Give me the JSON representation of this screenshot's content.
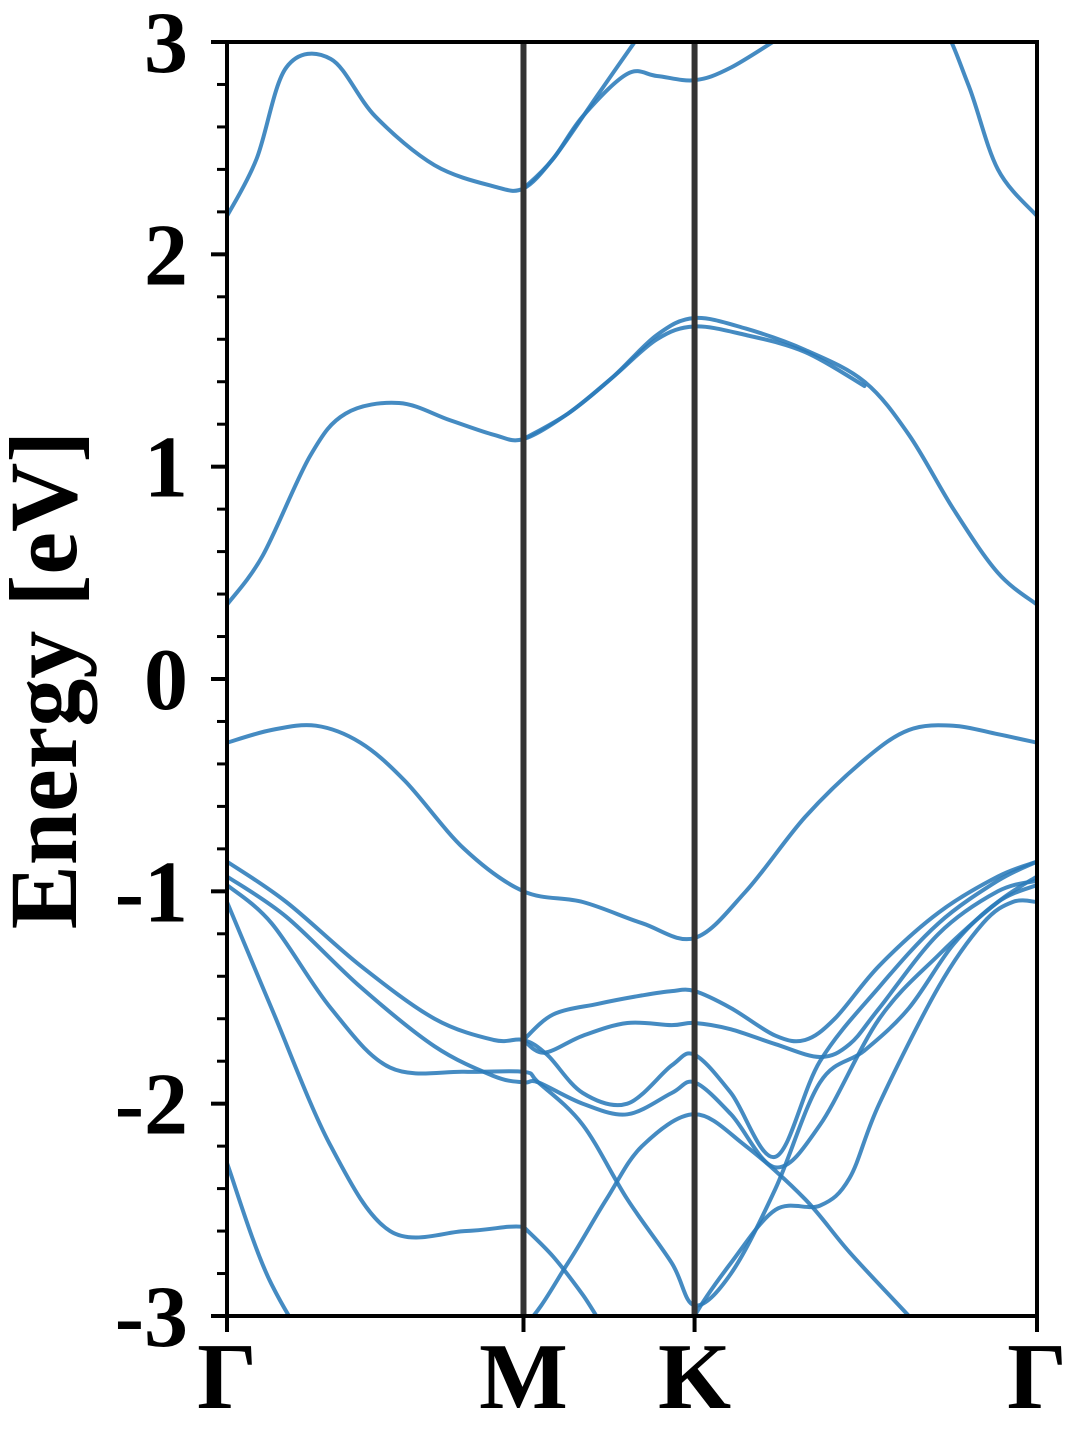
{
  "chart_data": {
    "type": "line",
    "title": "",
    "ylabel": "Energy [eV]",
    "xlabel": "",
    "ylim": [
      -3,
      3
    ],
    "yticks": [
      -3,
      -2,
      -1,
      0,
      1,
      2,
      3
    ],
    "ytick_labels": [
      "-3",
      "-2",
      "-1",
      "0",
      "1",
      "2",
      "3"
    ],
    "kpath": [
      {
        "label": "Γ",
        "x": 0.0
      },
      {
        "label": "M",
        "x": 1.0
      },
      {
        "label": "K",
        "x": 1.577
      },
      {
        "label": "Γ",
        "x": 2.732
      }
    ],
    "xlim": [
      0,
      2.732
    ],
    "grid": false,
    "colors": {
      "band": "#2b7bba",
      "kline": "#333333",
      "axis": "#000000"
    },
    "series": [
      {
        "x": [
          0,
          0.15,
          0.35,
          0.55,
          0.8,
          1.0,
          1.15,
          1.28,
          1.4,
          1.577,
          1.75,
          1.95,
          2.1,
          2.3,
          2.5,
          2.732
        ],
        "values": [
          -2.28,
          -2.85,
          -3.25,
          -3.3,
          -3.2,
          -3.05,
          -2.75,
          -2.45,
          -2.2,
          -2.05,
          -2.2,
          -2.45,
          -2.7,
          -3.0,
          -3.3,
          -3.4
        ]
      },
      {
        "x": [
          0,
          0.15,
          0.35,
          0.55,
          0.8,
          0.95,
          1.0
        ],
        "values": [
          -1.05,
          -1.55,
          -2.2,
          -2.6,
          -2.6,
          -2.58,
          -2.58
        ]
      },
      {
        "x": [
          1.0,
          1.1,
          1.2,
          1.35,
          1.5,
          1.577,
          1.7,
          1.85,
          2.0,
          2.1,
          2.2,
          2.4,
          2.55,
          2.65,
          2.732
        ],
        "values": [
          -2.58,
          -2.72,
          -2.9,
          -3.2,
          -3.25,
          -3.0,
          -2.75,
          -2.5,
          -2.48,
          -2.35,
          -2.0,
          -1.45,
          -1.15,
          -1.05,
          -1.05
        ]
      },
      {
        "x": [
          0,
          0.15,
          0.35,
          0.55,
          0.8,
          1.0,
          1.05,
          1.2,
          1.35,
          1.5,
          1.577,
          1.7,
          1.85,
          2.0,
          2.15,
          2.3,
          2.45,
          2.6,
          2.732
        ],
        "values": [
          -0.97,
          -1.15,
          -1.55,
          -1.83,
          -1.85,
          -1.85,
          -1.9,
          -2.1,
          -2.45,
          -2.75,
          -2.95,
          -2.8,
          -2.4,
          -1.9,
          -1.75,
          -1.55,
          -1.25,
          -1.05,
          -0.97
        ]
      },
      {
        "x": [
          0,
          0.2,
          0.45,
          0.7,
          0.9,
          1.0,
          1.05,
          1.2,
          1.35,
          1.5,
          1.577,
          1.7,
          1.85,
          2.0,
          2.2,
          2.4,
          2.6,
          2.732
        ],
        "values": [
          -0.93,
          -1.12,
          -1.45,
          -1.73,
          -1.87,
          -1.9,
          -1.9,
          -2.0,
          -2.05,
          -1.95,
          -1.9,
          -2.05,
          -2.3,
          -2.1,
          -1.6,
          -1.3,
          -1.05,
          -0.93
        ]
      },
      {
        "x": [
          0,
          0.2,
          0.45,
          0.7,
          0.9,
          1.0,
          1.08,
          1.2,
          1.35,
          1.5,
          1.577,
          1.7,
          1.85,
          2.0,
          2.2,
          2.4,
          2.6,
          2.732
        ],
        "values": [
          -0.86,
          -1.05,
          -1.35,
          -1.6,
          -1.7,
          -1.7,
          -1.77,
          -1.95,
          -2.0,
          -1.82,
          -1.77,
          -1.95,
          -2.25,
          -1.8,
          -1.45,
          -1.15,
          -0.95,
          -0.86
        ]
      },
      {
        "x": [
          1.0,
          1.1,
          1.25,
          1.4,
          1.5,
          1.577,
          1.7,
          1.85,
          1.95,
          2.05,
          2.2,
          2.4,
          2.6,
          2.732
        ],
        "values": [
          -1.7,
          -1.58,
          -1.53,
          -1.49,
          -1.47,
          -1.47,
          -1.55,
          -1.68,
          -1.7,
          -1.6,
          -1.35,
          -1.1,
          -0.93,
          -0.86
        ]
      },
      {
        "x": [
          1.0,
          1.07,
          1.2,
          1.35,
          1.5,
          1.577,
          1.7,
          1.85,
          2.0,
          2.1,
          2.2,
          2.4,
          2.6,
          2.732
        ],
        "values": [
          -1.7,
          -1.76,
          -1.68,
          -1.62,
          -1.63,
          -1.62,
          -1.65,
          -1.72,
          -1.78,
          -1.72,
          -1.55,
          -1.2,
          -1.0,
          -0.95
        ]
      },
      {
        "x": [
          0,
          0.15,
          0.3,
          0.45,
          0.6,
          0.8,
          1.0,
          1.2,
          1.4,
          1.577,
          1.75,
          1.95,
          2.15,
          2.3,
          2.45,
          2.6,
          2.732
        ],
        "values": [
          -0.3,
          -0.24,
          -0.22,
          -0.3,
          -0.48,
          -0.8,
          -1.0,
          -1.05,
          -1.15,
          -1.22,
          -1.0,
          -0.65,
          -0.38,
          -0.24,
          -0.22,
          -0.26,
          -0.3
        ]
      },
      {
        "x": [
          0,
          0.12,
          0.28,
          0.4,
          0.58,
          0.75,
          0.9,
          1.0,
          1.15,
          1.3,
          1.45,
          1.577,
          1.75,
          1.95,
          2.15,
          2.3,
          2.45,
          2.6,
          2.732
        ],
        "values": [
          0.35,
          0.58,
          1.05,
          1.25,
          1.3,
          1.22,
          1.15,
          1.13,
          1.25,
          1.42,
          1.62,
          1.7,
          1.65,
          1.55,
          1.4,
          1.15,
          0.8,
          0.5,
          0.35
        ]
      },
      {
        "x": [
          1.0,
          1.15,
          1.3,
          1.45,
          1.577,
          1.75,
          1.95,
          2.15
        ],
        "values": [
          1.13,
          1.25,
          1.42,
          1.6,
          1.66,
          1.62,
          1.54,
          1.38
        ]
      },
      {
        "x": [
          0,
          0.1,
          0.2,
          0.35,
          0.5,
          0.7,
          0.9,
          1.0,
          1.1,
          1.2,
          1.35,
          1.45,
          1.577,
          1.7,
          1.9,
          2.1,
          2.25,
          2.4,
          2.5,
          2.6,
          2.732
        ],
        "values": [
          2.18,
          2.45,
          2.88,
          2.92,
          2.65,
          2.42,
          2.32,
          2.31,
          2.45,
          2.65,
          2.85,
          2.84,
          2.82,
          2.88,
          3.05,
          3.2,
          3.2,
          3.1,
          2.8,
          2.4,
          2.18
        ]
      },
      {
        "x": [
          1.0,
          1.1,
          1.25,
          1.4
        ],
        "values": [
          2.31,
          2.45,
          2.75,
          3.05
        ]
      }
    ]
  }
}
